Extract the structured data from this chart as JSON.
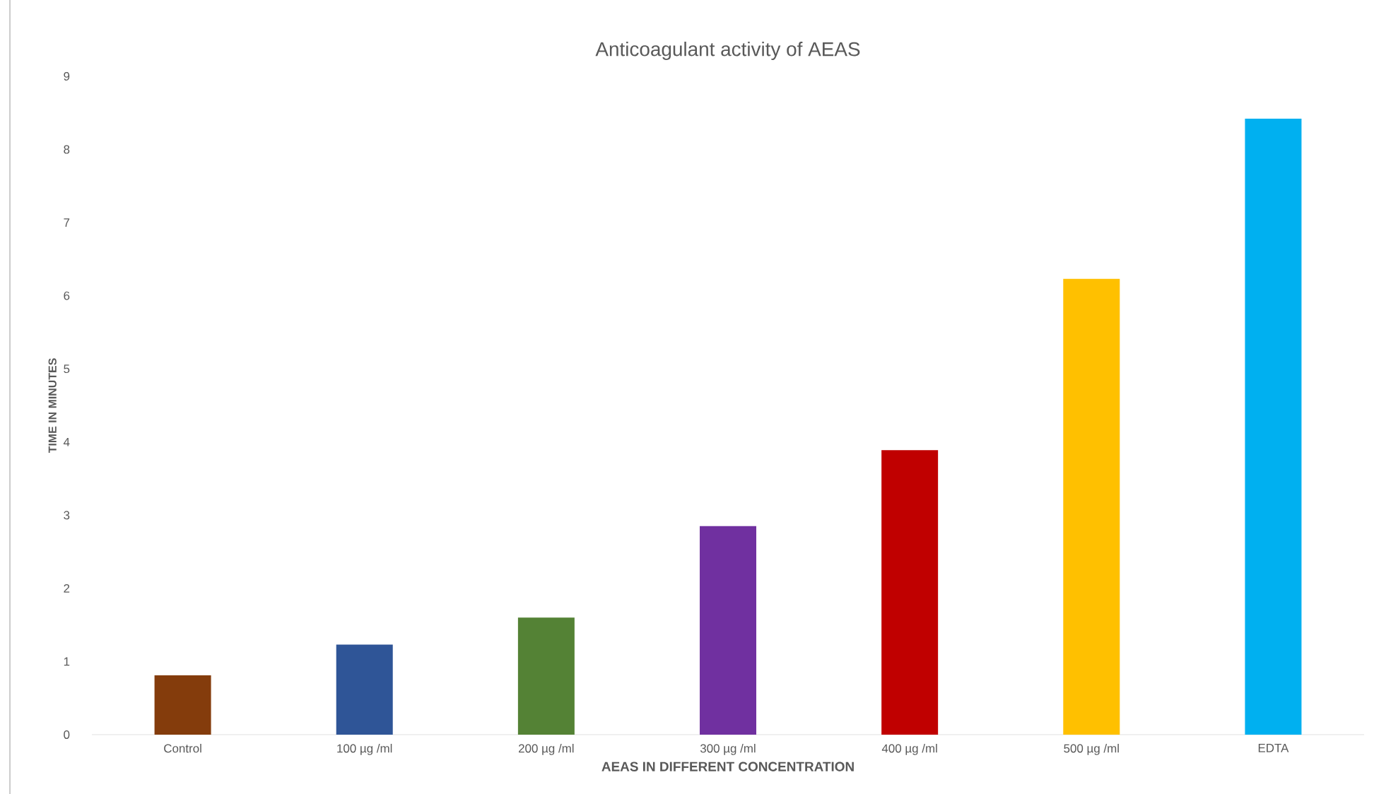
{
  "chart_data": {
    "type": "bar",
    "title": "Anticoagulant activity of AEAS",
    "xlabel": "AEAS IN DIFFERENT CONCENTRATION",
    "ylabel": "TIME IN MINUTES",
    "categories": [
      "Control",
      "100 µg /ml",
      "200 µg /ml",
      "300 µg /ml",
      "400 µg /ml",
      "500 µg /ml",
      "EDTA"
    ],
    "values": [
      0.81,
      1.23,
      1.6,
      2.85,
      3.89,
      6.23,
      8.42
    ],
    "colors": [
      "#843c0c",
      "#2f5597",
      "#548235",
      "#7030a0",
      "#c00000",
      "#ffc000",
      "#00b0f0"
    ],
    "ylim": [
      0,
      9
    ],
    "yticks": [
      0,
      1,
      2,
      3,
      4,
      5,
      6,
      7,
      8,
      9
    ]
  }
}
